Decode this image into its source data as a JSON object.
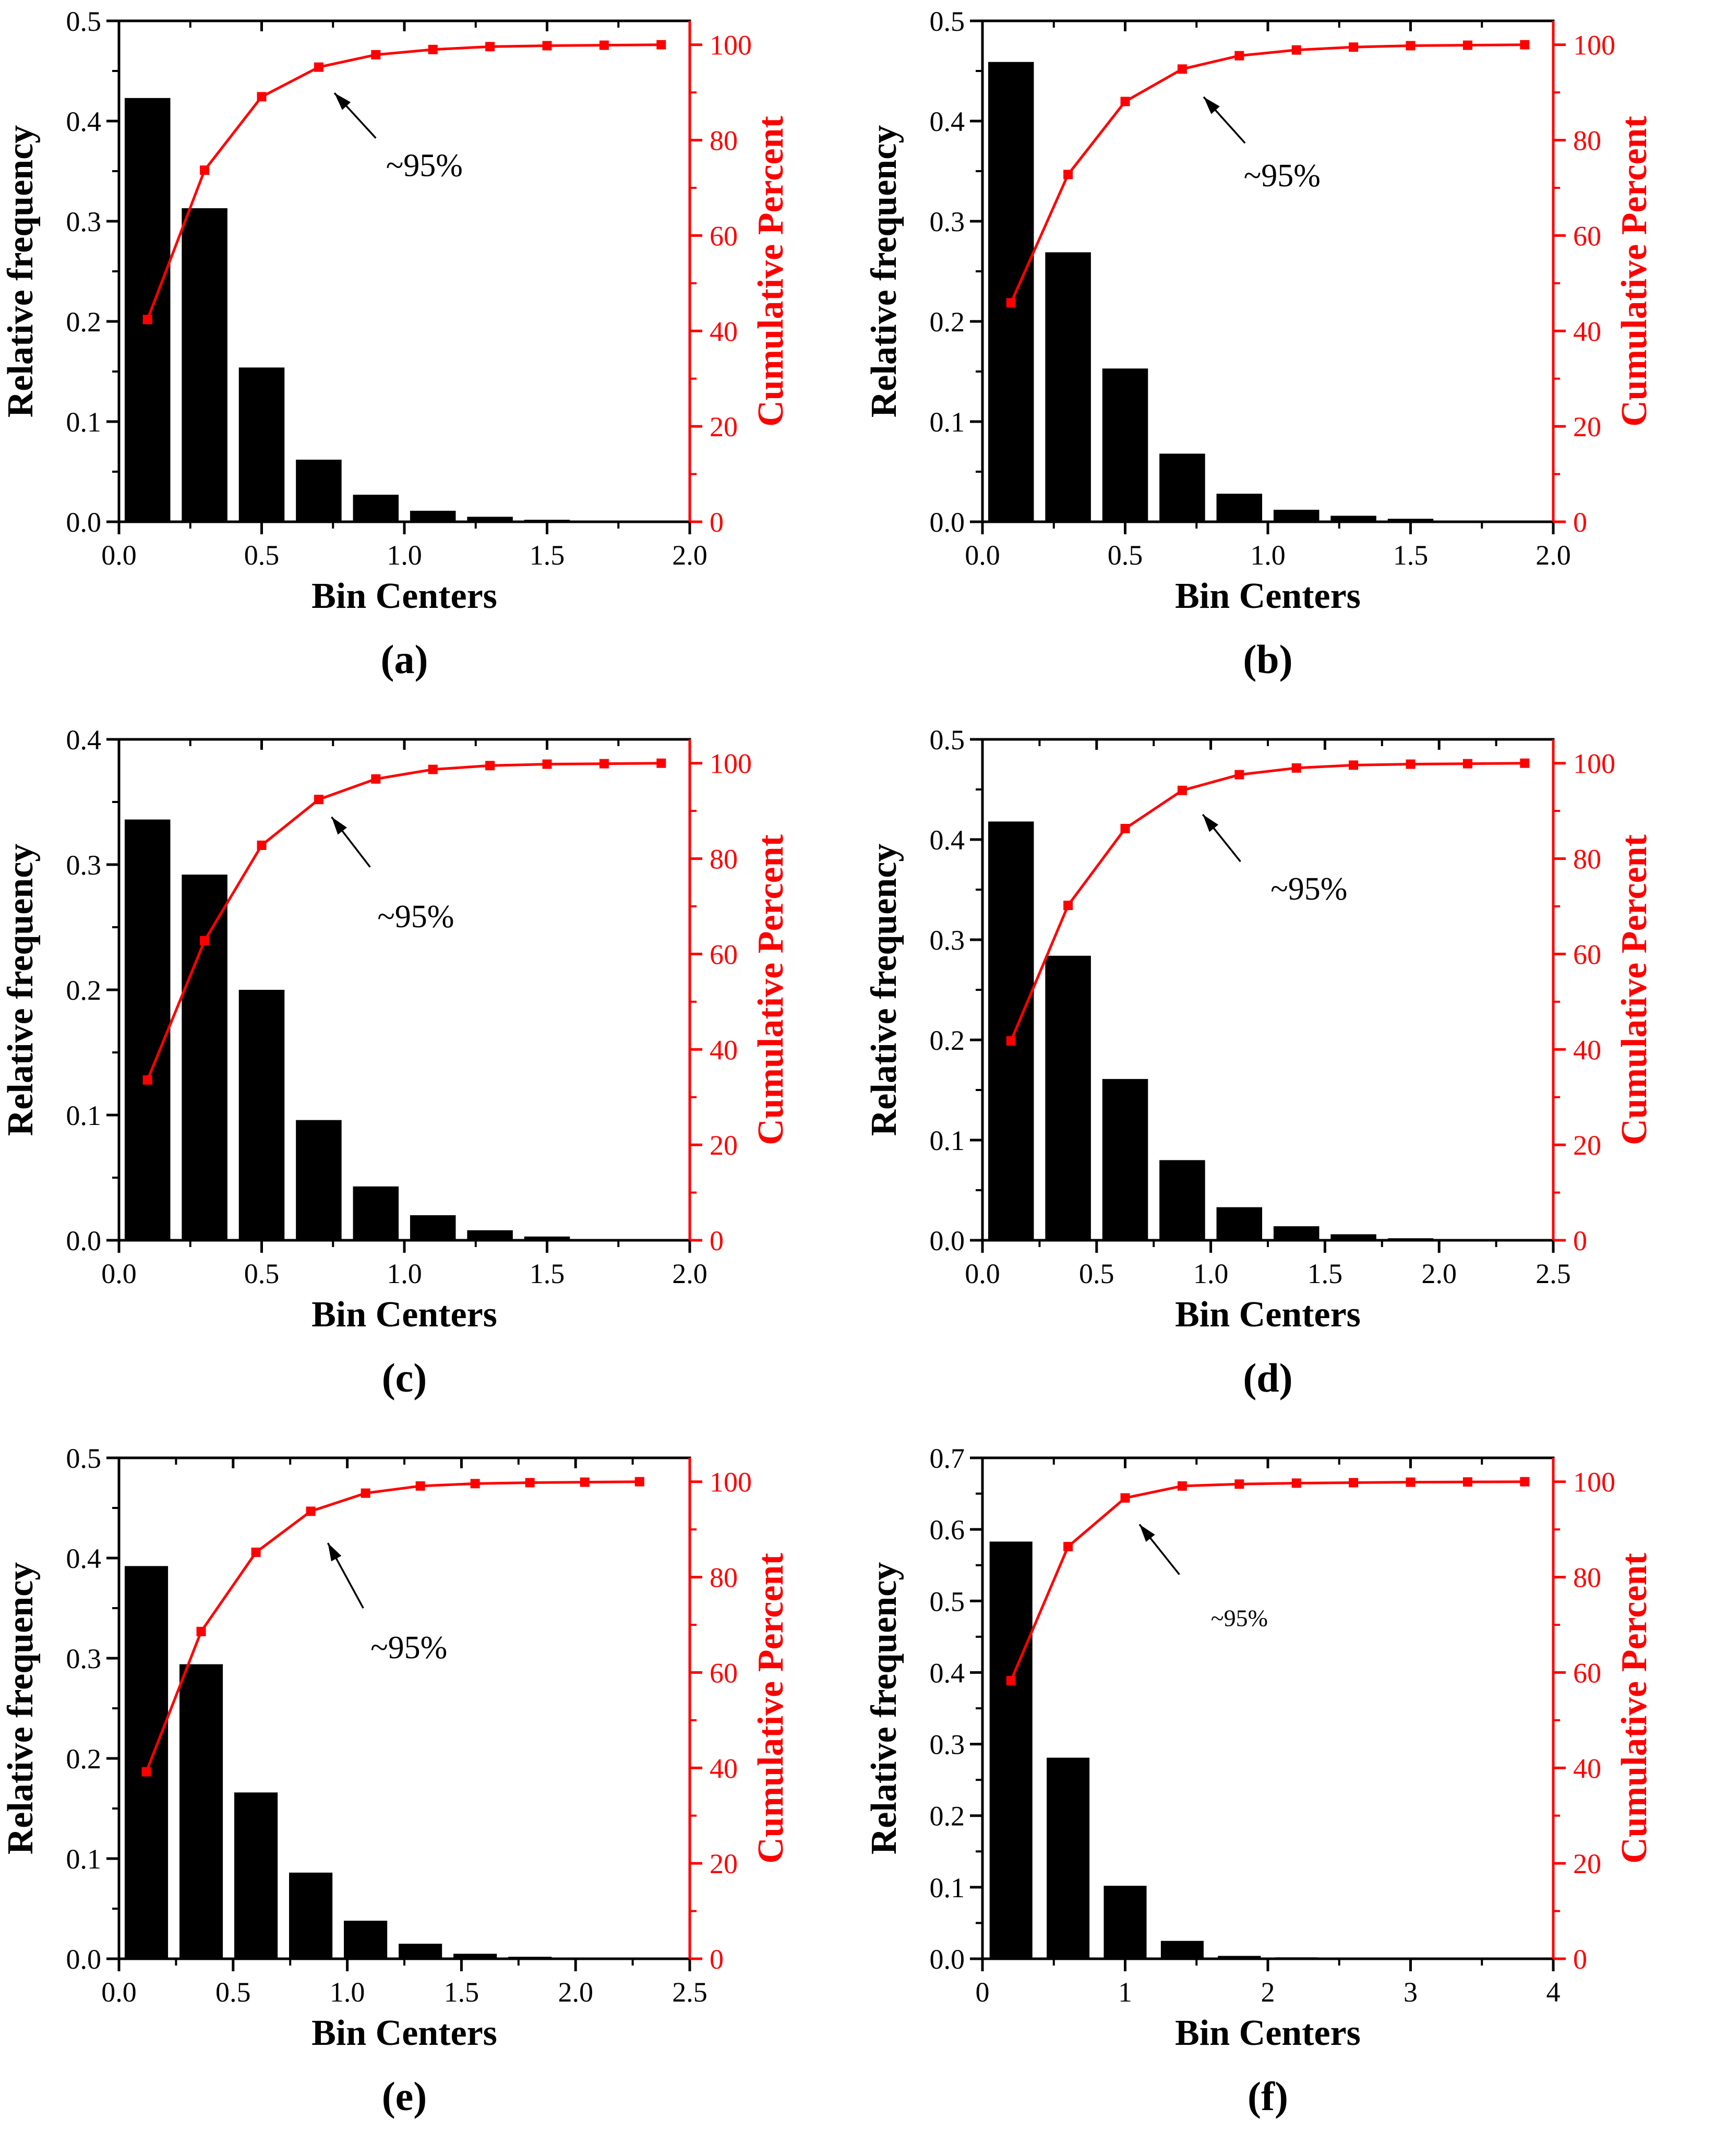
{
  "figure": {
    "background": "#ffffff",
    "colors": {
      "bars": "#000000",
      "cumulative_line": "#ff0000",
      "axes": "#000000",
      "annotation_text": "#000000"
    }
  },
  "chart_data": [
    {
      "type": "bar+line pareto histogram",
      "panel_label": "(a)",
      "xlabel": "Bin Centers",
      "ylabel_left": "Relative frequency",
      "ylabel_right": "Cumulative Percent",
      "xlim": [
        0,
        2
      ],
      "xticks": [
        0,
        0.5,
        1.0,
        1.5,
        2.0
      ],
      "xtick_labels": [
        "0.0",
        "0.5",
        "1.0",
        "1.5",
        "2.0"
      ],
      "x_minor_step": 0.25,
      "ylim_left": [
        0,
        0.5
      ],
      "yticks_left": [
        0,
        0.1,
        0.2,
        0.3,
        0.4,
        0.5
      ],
      "ytick_labels_left": [
        "0.0",
        "0.1",
        "0.2",
        "0.3",
        "0.4",
        "0.5"
      ],
      "y_minor_step_left": 0.05,
      "ylim_right": [
        0,
        105
      ],
      "yticks_right": [
        0,
        20,
        40,
        60,
        80,
        100
      ],
      "ytick_labels_right": [
        "0",
        "20",
        "40",
        "60",
        "80",
        "100"
      ],
      "y_minor_step_right": 10,
      "grid": false,
      "legend": null,
      "bin_centers": [
        0.1,
        0.3,
        0.5,
        0.7,
        0.9,
        1.1,
        1.3,
        1.5,
        1.7,
        1.9
      ],
      "bar_width": 0.16,
      "rel_freq": [
        0.423,
        0.313,
        0.154,
        0.062,
        0.027,
        0.011,
        0.005,
        0.002,
        0.001,
        0.001
      ],
      "cum_percent": [
        42.4,
        73.7,
        89.1,
        95.3,
        97.9,
        99.0,
        99.6,
        99.8,
        99.9,
        100
      ],
      "annotation": {
        "label": "~95%",
        "label_x": 1.07,
        "label_y": 0.345,
        "arrow_tail_x": 0.9,
        "arrow_tail_y": 0.383,
        "arrow_head_x": 0.755,
        "arrow_head_y": 0.428,
        "small": false
      }
    },
    {
      "type": "bar+line pareto histogram",
      "panel_label": "(b)",
      "xlabel": "Bin Centers",
      "ylabel_left": "Relative frequency",
      "ylabel_right": "Cumulative Percent",
      "xlim": [
        0,
        2
      ],
      "xticks": [
        0,
        0.5,
        1.0,
        1.5,
        2.0
      ],
      "xtick_labels": [
        "0.0",
        "0.5",
        "1.0",
        "1.5",
        "2.0"
      ],
      "x_minor_step": 0.25,
      "ylim_left": [
        0,
        0.5
      ],
      "yticks_left": [
        0,
        0.1,
        0.2,
        0.3,
        0.4,
        0.5
      ],
      "ytick_labels_left": [
        "0.0",
        "0.1",
        "0.2",
        "0.3",
        "0.4",
        "0.5"
      ],
      "y_minor_step_left": 0.05,
      "ylim_right": [
        0,
        105
      ],
      "yticks_right": [
        0,
        20,
        40,
        60,
        80,
        100
      ],
      "ytick_labels_right": [
        "0",
        "20",
        "40",
        "60",
        "80",
        "100"
      ],
      "y_minor_step_right": 10,
      "grid": false,
      "legend": null,
      "bin_centers": [
        0.1,
        0.3,
        0.5,
        0.7,
        0.9,
        1.1,
        1.3,
        1.5,
        1.7,
        1.9
      ],
      "bar_width": 0.16,
      "rel_freq": [
        0.459,
        0.269,
        0.153,
        0.068,
        0.028,
        0.012,
        0.006,
        0.003,
        0.001,
        0.001
      ],
      "cum_percent": [
        45.9,
        72.8,
        88.1,
        94.9,
        97.7,
        98.9,
        99.5,
        99.8,
        99.9,
        100
      ],
      "annotation": {
        "label": "~95%",
        "label_x": 1.05,
        "label_y": 0.335,
        "arrow_tail_x": 0.92,
        "arrow_tail_y": 0.378,
        "arrow_head_x": 0.775,
        "arrow_head_y": 0.424,
        "small": false
      }
    },
    {
      "type": "bar+line pareto histogram",
      "panel_label": "(c)",
      "xlabel": "Bin Centers",
      "ylabel_left": "Relative frequency",
      "ylabel_right": "Cumulative Percent",
      "xlim": [
        0,
        2
      ],
      "xticks": [
        0,
        0.5,
        1.0,
        1.5,
        2.0
      ],
      "xtick_labels": [
        "0.0",
        "0.5",
        "1.0",
        "1.5",
        "2.0"
      ],
      "x_minor_step": 0.25,
      "ylim_left": [
        0,
        0.4
      ],
      "yticks_left": [
        0,
        0.1,
        0.2,
        0.3,
        0.4
      ],
      "ytick_labels_left": [
        "0.0",
        "0.1",
        "0.2",
        "0.3",
        "0.4"
      ],
      "y_minor_step_left": 0.05,
      "ylim_right": [
        0,
        105
      ],
      "yticks_right": [
        0,
        20,
        40,
        60,
        80,
        100
      ],
      "ytick_labels_right": [
        "0",
        "20",
        "40",
        "60",
        "80",
        "100"
      ],
      "y_minor_step_right": 10,
      "grid": false,
      "legend": null,
      "bin_centers": [
        0.1,
        0.3,
        0.5,
        0.7,
        0.9,
        1.1,
        1.3,
        1.5,
        1.7,
        1.9
      ],
      "bar_width": 0.16,
      "rel_freq": [
        0.336,
        0.292,
        0.2,
        0.096,
        0.043,
        0.02,
        0.008,
        0.003,
        0.001,
        0.001
      ],
      "cum_percent": [
        33.6,
        62.8,
        82.8,
        92.4,
        96.7,
        98.7,
        99.5,
        99.8,
        99.9,
        100
      ],
      "annotation": {
        "label": "~95%",
        "label_x": 1.04,
        "label_y": 0.25,
        "arrow_tail_x": 0.88,
        "arrow_tail_y": 0.298,
        "arrow_head_x": 0.745,
        "arrow_head_y": 0.338,
        "small": false
      }
    },
    {
      "type": "bar+line pareto histogram",
      "panel_label": "(d)",
      "xlabel": "Bin Centers",
      "ylabel_left": "Relative frequency",
      "ylabel_right": "Cumulative Percent",
      "xlim": [
        0,
        2.5
      ],
      "xticks": [
        0,
        0.5,
        1.0,
        1.5,
        2.0,
        2.5
      ],
      "xtick_labels": [
        "0.0",
        "0.5",
        "1.0",
        "1.5",
        "2.0",
        "2.5"
      ],
      "x_minor_step": 0.25,
      "ylim_left": [
        0,
        0.5
      ],
      "yticks_left": [
        0,
        0.1,
        0.2,
        0.3,
        0.4,
        0.5
      ],
      "ytick_labels_left": [
        "0.0",
        "0.1",
        "0.2",
        "0.3",
        "0.4",
        "0.5"
      ],
      "y_minor_step_left": 0.05,
      "ylim_right": [
        0,
        105
      ],
      "yticks_right": [
        0,
        20,
        40,
        60,
        80,
        100
      ],
      "ytick_labels_right": [
        "0",
        "20",
        "40",
        "60",
        "80",
        "100"
      ],
      "y_minor_step_right": 10,
      "grid": false,
      "legend": null,
      "bin_centers": [
        0.125,
        0.375,
        0.625,
        0.875,
        1.125,
        1.375,
        1.625,
        1.875,
        2.125,
        2.375
      ],
      "bar_width": 0.2,
      "rel_freq": [
        0.418,
        0.284,
        0.161,
        0.08,
        0.033,
        0.014,
        0.006,
        0.002,
        0.001,
        0.001
      ],
      "cum_percent": [
        41.8,
        70.2,
        86.3,
        94.3,
        97.6,
        99.0,
        99.6,
        99.8,
        99.9,
        100
      ],
      "annotation": {
        "label": "~95%",
        "label_x": 1.43,
        "label_y": 0.34,
        "arrow_tail_x": 1.13,
        "arrow_tail_y": 0.378,
        "arrow_head_x": 0.965,
        "arrow_head_y": 0.425,
        "small": false
      }
    },
    {
      "type": "bar+line pareto histogram",
      "panel_label": "(e)",
      "xlabel": "Bin Centers",
      "ylabel_left": "Relative frequency",
      "ylabel_right": "Cumulative Percent",
      "xlim": [
        0,
        2.5
      ],
      "xticks": [
        0,
        0.5,
        1.0,
        1.5,
        2.0,
        2.5
      ],
      "xtick_labels": [
        "0.0",
        "0.5",
        "1.0",
        "1.5",
        "2.0",
        "2.5"
      ],
      "x_minor_step": 0.25,
      "ylim_left": [
        0,
        0.5
      ],
      "yticks_left": [
        0,
        0.1,
        0.2,
        0.3,
        0.4,
        0.5
      ],
      "ytick_labels_left": [
        "0.0",
        "0.1",
        "0.2",
        "0.3",
        "0.4",
        "0.5"
      ],
      "y_minor_step_left": 0.05,
      "ylim_right": [
        0,
        105
      ],
      "yticks_right": [
        0,
        20,
        40,
        60,
        80,
        100
      ],
      "ytick_labels_right": [
        "0",
        "20",
        "40",
        "60",
        "80",
        "100"
      ],
      "y_minor_step_right": 10,
      "grid": false,
      "legend": null,
      "bin_centers": [
        0.12,
        0.36,
        0.6,
        0.84,
        1.08,
        1.32,
        1.56,
        1.8,
        2.04,
        2.28
      ],
      "bar_width": 0.19,
      "rel_freq": [
        0.392,
        0.294,
        0.166,
        0.086,
        0.038,
        0.015,
        0.005,
        0.002,
        0.001,
        0.001
      ],
      "cum_percent": [
        39.2,
        68.6,
        85.2,
        93.8,
        97.6,
        99.1,
        99.6,
        99.8,
        99.9,
        100
      ],
      "annotation": {
        "label": "~95%",
        "label_x": 1.27,
        "label_y": 0.3,
        "arrow_tail_x": 1.07,
        "arrow_tail_y": 0.35,
        "arrow_head_x": 0.915,
        "arrow_head_y": 0.415,
        "small": false
      }
    },
    {
      "type": "bar+line pareto histogram",
      "panel_label": "(f)",
      "xlabel": "Bin Centers",
      "ylabel_left": "Relative frequency",
      "ylabel_right": "Cumulative Percent",
      "xlim": [
        0,
        4
      ],
      "xticks": [
        0,
        1,
        2,
        3,
        4
      ],
      "xtick_labels": [
        "0",
        "1",
        "2",
        "3",
        "4"
      ],
      "x_minor_step": 0.5,
      "ylim_left": [
        0,
        0.7
      ],
      "yticks_left": [
        0,
        0.1,
        0.2,
        0.3,
        0.4,
        0.5,
        0.6,
        0.7
      ],
      "ytick_labels_left": [
        "0.0",
        "0.1",
        "0.2",
        "0.3",
        "0.4",
        "0.5",
        "0.6",
        "0.7"
      ],
      "y_minor_step_left": 0.05,
      "ylim_right": [
        0,
        105
      ],
      "yticks_right": [
        0,
        20,
        40,
        60,
        80,
        100
      ],
      "ytick_labels_right": [
        "0",
        "20",
        "40",
        "60",
        "80",
        "100"
      ],
      "y_minor_step_right": 10,
      "grid": false,
      "legend": null,
      "bin_centers": [
        0.2,
        0.6,
        1.0,
        1.4,
        1.8,
        2.2,
        2.6,
        3.0,
        3.4,
        3.8
      ],
      "bar_width": 0.3,
      "rel_freq": [
        0.583,
        0.281,
        0.102,
        0.025,
        0.004,
        0.002,
        0.001,
        0.001,
        0.0005,
        0.0005
      ],
      "cum_percent": [
        58.3,
        86.4,
        96.6,
        99.1,
        99.5,
        99.7,
        99.8,
        99.9,
        99.95,
        100
      ],
      "annotation": {
        "label": "~95%",
        "label_x": 1.8,
        "label_y": 0.465,
        "arrow_tail_x": 1.38,
        "arrow_tail_y": 0.537,
        "arrow_head_x": 1.1,
        "arrow_head_y": 0.607,
        "small": true
      }
    }
  ]
}
